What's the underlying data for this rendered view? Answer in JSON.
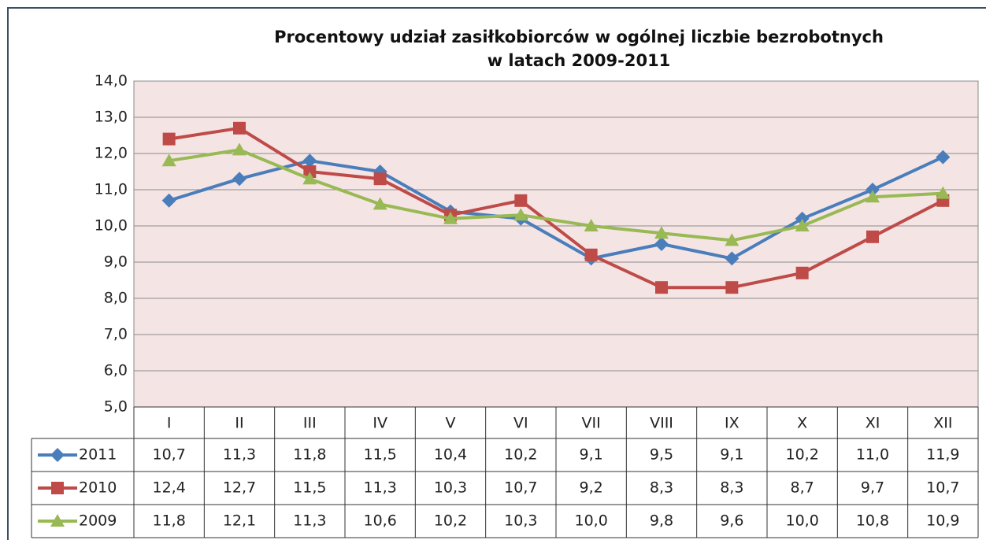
{
  "chart_data": {
    "type": "line",
    "title": [
      "Procentowy udział zasiłkobiorców w ogólnej liczbie bezrobotnych",
      "w latach 2009-2011"
    ],
    "categories": [
      "I",
      "II",
      "III",
      "IV",
      "V",
      "VI",
      "VII",
      "VIII",
      "IX",
      "X",
      "XI",
      "XII"
    ],
    "series": [
      {
        "name": "2011",
        "color": "#4a7ebb",
        "marker": "diamond",
        "values": [
          10.7,
          11.3,
          11.8,
          11.5,
          10.4,
          10.2,
          9.1,
          9.5,
          9.1,
          10.2,
          11.0,
          11.9
        ],
        "value_labels": [
          "10,7",
          "11,3",
          "11,8",
          "11,5",
          "10,4",
          "10,2",
          "9,1",
          "9,5",
          "9,1",
          "10,2",
          "11,0",
          "11,9"
        ]
      },
      {
        "name": "2010",
        "color": "#be4b48",
        "marker": "square",
        "values": [
          12.4,
          12.7,
          11.5,
          11.3,
          10.3,
          10.7,
          9.2,
          8.3,
          8.3,
          8.7,
          9.7,
          10.7
        ],
        "value_labels": [
          "12,4",
          "12,7",
          "11,5",
          "11,3",
          "10,3",
          "10,7",
          "9,2",
          "8,3",
          "8,3",
          "8,7",
          "9,7",
          "10,7"
        ]
      },
      {
        "name": "2009",
        "color": "#98b954",
        "marker": "triangle",
        "values": [
          11.8,
          12.1,
          11.3,
          10.6,
          10.2,
          10.3,
          10.0,
          9.8,
          9.6,
          10.0,
          10.8,
          10.9
        ],
        "value_labels": [
          "11,8",
          "12,1",
          "11,3",
          "10,6",
          "10,2",
          "10,3",
          "10,0",
          "9,8",
          "9,6",
          "10,0",
          "10,8",
          "10,9"
        ]
      }
    ],
    "ylim": [
      5,
      14
    ],
    "yticks": [
      {
        "value": 5,
        "label": "5,0"
      },
      {
        "value": 6,
        "label": "6,0"
      },
      {
        "value": 7,
        "label": "7,0"
      },
      {
        "value": 8,
        "label": "8,0"
      },
      {
        "value": 9,
        "label": "9,0"
      },
      {
        "value": 10,
        "label": "10,0"
      },
      {
        "value": 11,
        "label": "11,0"
      },
      {
        "value": 12,
        "label": "12,0"
      },
      {
        "value": 13,
        "label": "13,0"
      },
      {
        "value": 14,
        "label": "14,0"
      }
    ],
    "grid": true,
    "plot_background": "#f5e4e4"
  }
}
